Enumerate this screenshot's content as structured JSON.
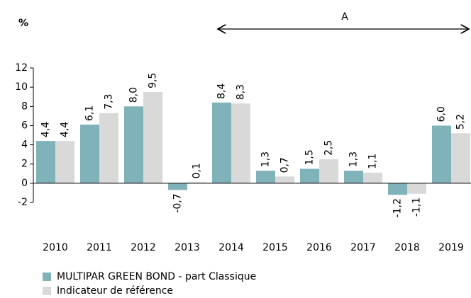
{
  "chart_data": {
    "type": "bar",
    "y_label": "%",
    "annotation": "A",
    "categories": [
      "2010",
      "2011",
      "2012",
      "2013",
      "2014",
      "2015",
      "2016",
      "2017",
      "2018",
      "2019"
    ],
    "series": [
      {
        "name": "MULTIPAR GREEN BOND - part Classique",
        "color": "#7fb2b9",
        "values": [
          4.4,
          6.1,
          8.0,
          -0.7,
          8.4,
          1.3,
          1.5,
          1.3,
          -1.2,
          6.0
        ],
        "value_labels": [
          "4,4",
          "6,1",
          "8,0",
          "-0,7",
          "8,4",
          "1,3",
          "1,5",
          "1,3",
          "-1,2",
          "6,0"
        ]
      },
      {
        "name": "Indicateur de référence",
        "color": "#d9d9d9",
        "values": [
          4.4,
          7.3,
          9.5,
          0.1,
          8.3,
          0.7,
          2.5,
          1.1,
          -1.1,
          5.2
        ],
        "value_labels": [
          "4,4",
          "7,3",
          "9,5",
          "0,1",
          "8,3",
          "0,7",
          "2,5",
          "1,1",
          "-1,1",
          "5,2"
        ]
      }
    ],
    "ylim": [
      -2,
      12
    ],
    "yticks": [
      -2,
      0,
      2,
      4,
      6,
      8,
      10,
      12
    ],
    "legend": "bottom-left"
  }
}
